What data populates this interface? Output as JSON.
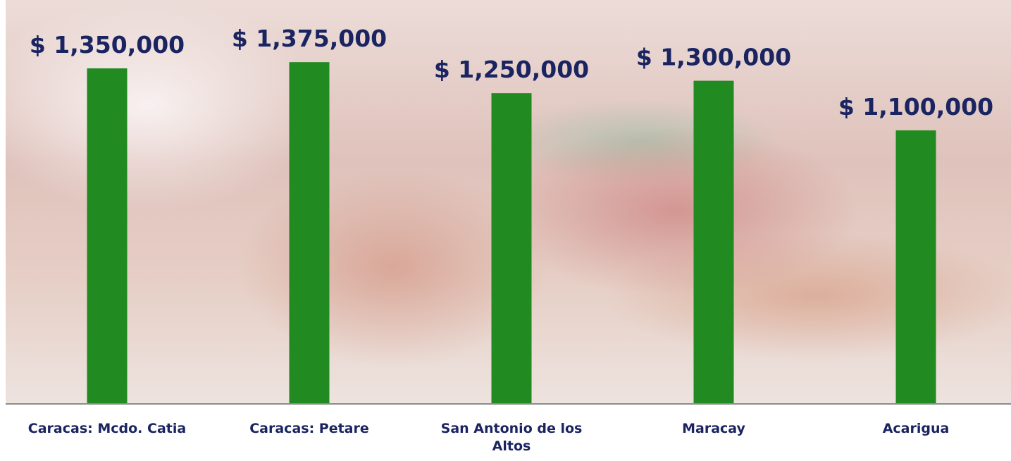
{
  "chart_data": {
    "type": "bar",
    "categories": [
      "Caracas: Mcdo. Catia",
      "Caracas: Petare",
      "San Antonio de los Altos",
      "Maracay",
      "Acarigua"
    ],
    "values": [
      1350000,
      1375000,
      1250000,
      1300000,
      1100000
    ],
    "value_labels": [
      "$ 1,350,000",
      "$ 1,375,000",
      "$ 1,250,000",
      "$ 1,300,000",
      "$ 1,100,000"
    ],
    "color": "#218a21",
    "ylim": [
      0,
      1600000
    ]
  }
}
